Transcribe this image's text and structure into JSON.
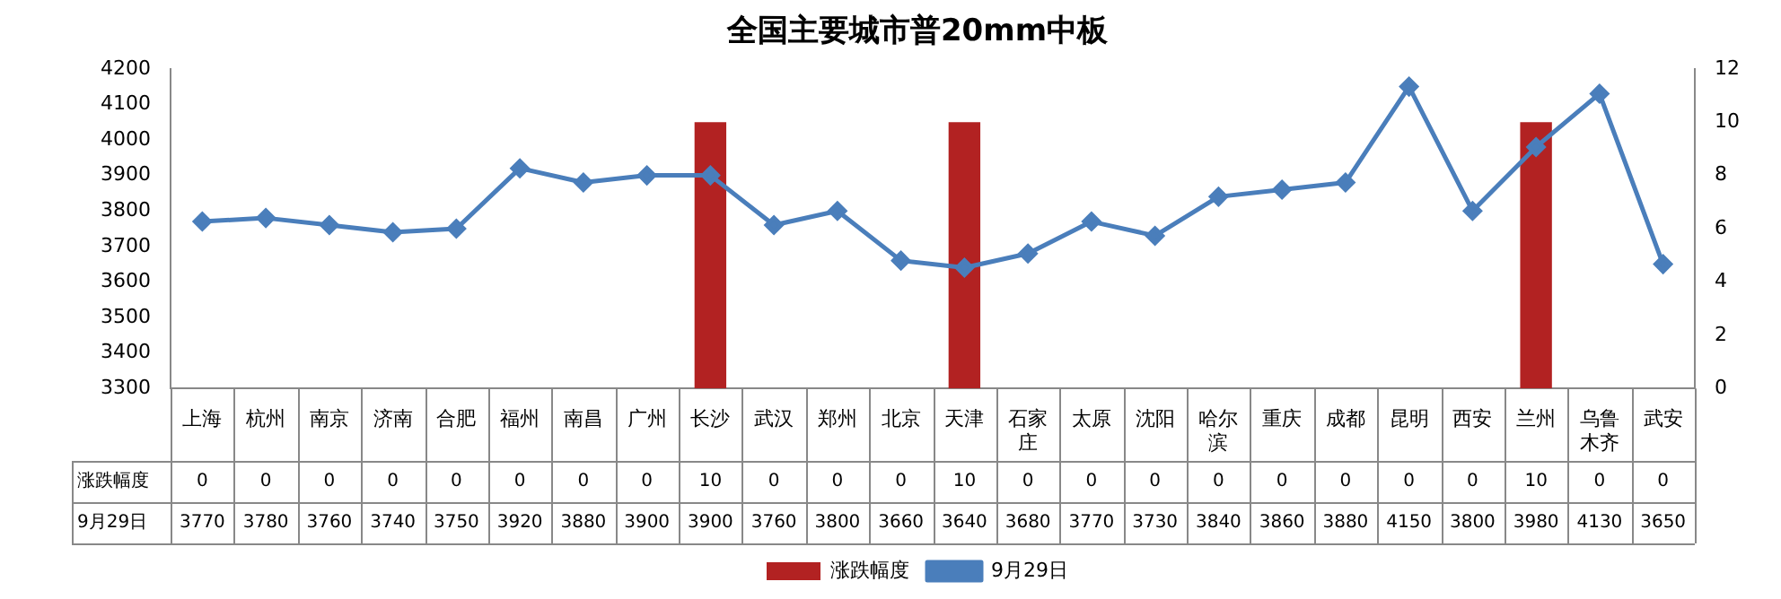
{
  "chart_data": {
    "type": "bar",
    "title": "全国主要城市普20mm中板",
    "categories": [
      "上海",
      "杭州",
      "南京",
      "济南",
      "合肥",
      "福州",
      "南昌",
      "广州",
      "长沙",
      "武汉",
      "郑州",
      "北京",
      "天津",
      "石家庄",
      "太原",
      "沈阳",
      "哈尔滨",
      "重庆",
      "成都",
      "昆明",
      "西安",
      "兰州",
      "乌鲁木齐",
      "武安"
    ],
    "series": [
      {
        "name": "涨跌幅度",
        "axis": "y2",
        "color": "#b22222",
        "values": [
          0,
          0,
          0,
          0,
          0,
          0,
          0,
          0,
          10,
          0,
          0,
          0,
          10,
          0,
          0,
          0,
          0,
          0,
          0,
          0,
          0,
          10,
          0,
          0
        ]
      },
      {
        "name": "9月29日",
        "type": "line",
        "color": "#4a7ebb",
        "values": [
          3770,
          3780,
          3760,
          3740,
          3750,
          3920,
          3880,
          3900,
          3900,
          3760,
          3800,
          3660,
          3640,
          3680,
          3770,
          3730,
          3840,
          3860,
          3880,
          4150,
          3800,
          3980,
          4130,
          3650
        ]
      }
    ],
    "ylim": [
      3300,
      4200
    ],
    "yticks": [
      3300,
      3400,
      3500,
      3600,
      3700,
      3800,
      3900,
      4000,
      4100,
      4200
    ],
    "y2lim": [
      0,
      12
    ],
    "y2ticks": [
      0,
      2,
      4,
      6,
      8,
      10,
      12
    ],
    "marker": "diamond",
    "legend": "bottom",
    "data_labels": true
  }
}
